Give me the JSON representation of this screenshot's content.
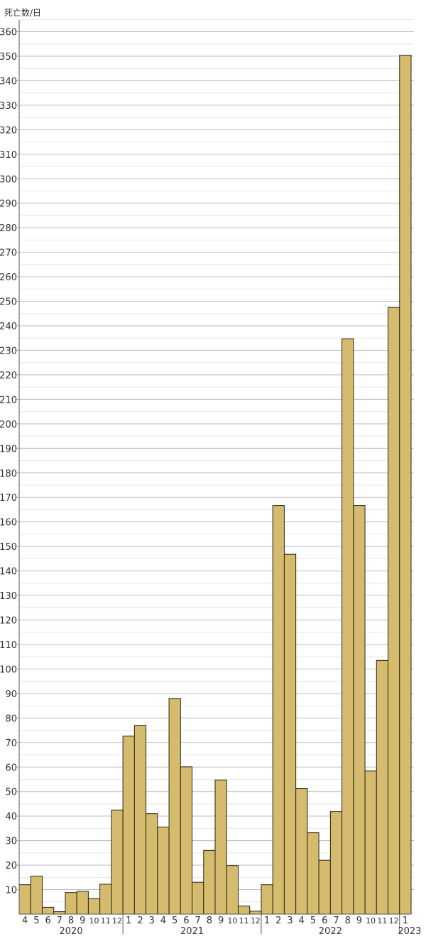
{
  "chart_data": {
    "type": "bar",
    "ylabel": "死亡数/日",
    "ylim": [
      0,
      360
    ],
    "yticks": [
      10,
      20,
      30,
      40,
      50,
      60,
      70,
      80,
      90,
      100,
      110,
      120,
      130,
      140,
      150,
      160,
      170,
      180,
      190,
      200,
      210,
      220,
      230,
      240,
      250,
      260,
      270,
      280,
      290,
      300,
      310,
      320,
      330,
      340,
      350,
      360
    ],
    "grid": true,
    "categories": [
      "4",
      "5",
      "6",
      "7",
      "8",
      "9",
      "10",
      "11",
      "12",
      "1",
      "2",
      "3",
      "4",
      "5",
      "6",
      "7",
      "8",
      "9",
      "10",
      "11",
      "12",
      "1",
      "2",
      "3",
      "4",
      "5",
      "6",
      "7",
      "8",
      "9",
      "10",
      "11",
      "12",
      "1"
    ],
    "years": [
      {
        "label": "2020",
        "start": 0,
        "end": 9
      },
      {
        "label": "2021",
        "start": 9,
        "end": 21
      },
      {
        "label": "2022",
        "start": 21,
        "end": 33
      },
      {
        "label": "2023",
        "start": 33,
        "end": 34
      }
    ],
    "values": [
      12,
      15.5,
      2.8,
      1,
      8.8,
      9.3,
      6.4,
      12.2,
      42.4,
      72.6,
      77,
      41,
      35.5,
      88,
      60.1,
      13,
      26,
      54.7,
      19.8,
      3.3,
      1.2,
      12,
      166.7,
      146.8,
      51.2,
      33.2,
      22,
      41.9,
      234.7,
      166.7,
      58.4,
      103.5,
      247.5,
      350.4
    ],
    "bar_color": "#d4bb6e",
    "bar_stroke": "#2a2416"
  }
}
